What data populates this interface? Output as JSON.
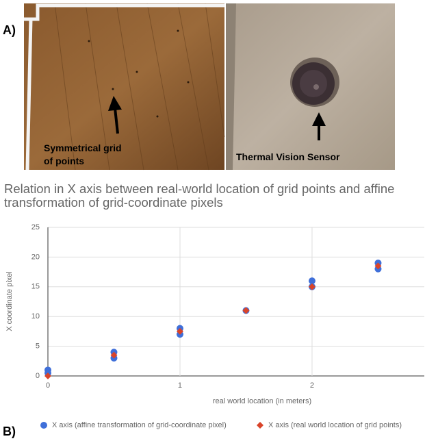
{
  "panel_labels": [
    "A)",
    "B)"
  ],
  "photo_captions": [
    "Symmetrical grid of points",
    "Thermal Vision Sensor"
  ],
  "chart_data": {
    "type": "scatter",
    "title": "Relation in X axis between real-world location of grid points and affine transformation of grid-coordinate pixels",
    "x_label": "real world location (in meters)",
    "y_label": "X coordinate pixel",
    "xlim": [
      0,
      2.85
    ],
    "xticks": [
      0,
      1,
      2
    ],
    "ylim": [
      0,
      25
    ],
    "yticks": [
      0,
      5,
      10,
      15,
      20,
      25
    ],
    "grid": true,
    "series": [
      {
        "name": "X axis (affine transformation of grid-coordinate pixel)",
        "color": "#3f6fd9",
        "marker": "circle",
        "x": [
          0,
          0,
          0.5,
          0.5,
          1,
          1,
          1.5,
          2,
          2,
          2.5,
          2.5
        ],
        "values": [
          1,
          0.5,
          4,
          3,
          8,
          7,
          11,
          16,
          15,
          19,
          18
        ]
      },
      {
        "name": "X axis (real world location of grid points)",
        "color": "#d9442a",
        "marker": "diamond",
        "x": [
          0,
          0.5,
          1,
          1.5,
          2,
          2.5
        ],
        "values": [
          0,
          3.5,
          7.5,
          11,
          15,
          18.5
        ]
      }
    ]
  }
}
